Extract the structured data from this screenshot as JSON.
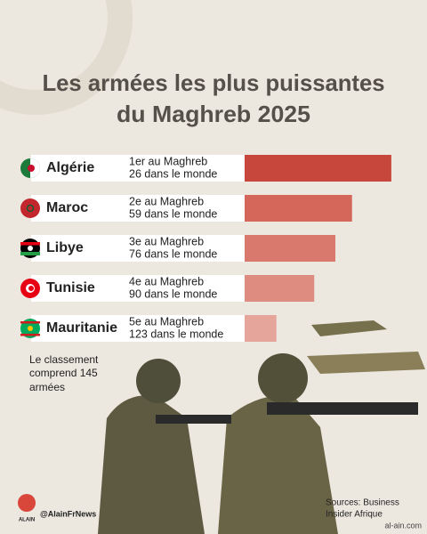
{
  "chart_data": {
    "type": "bar",
    "title_lines": [
      "Les armées les plus puissantes",
      "du Maghreb 2025"
    ],
    "categories": [
      "Algérie",
      "Maroc",
      "Libye",
      "Tunisie",
      "Mauritanie"
    ],
    "maghreb_rank": [
      "1er au Maghreb",
      "2e au Maghreb",
      "3e au Maghreb",
      "4e au Maghreb",
      "5e au Maghreb"
    ],
    "world_rank": [
      "26 dans le monde",
      "59 dans le monde",
      "76 dans le monde",
      "90 dans le monde",
      "123 dans le monde"
    ],
    "values": [
      97,
      71,
      60,
      46,
      21
    ],
    "colors": [
      "#c8473c",
      "#d4665a",
      "#d9786c",
      "#de8b80",
      "#e6a59b"
    ],
    "xlim": [
      0,
      100
    ],
    "note_lines": [
      "Le classement",
      "comprend 145",
      "armées"
    ]
  },
  "footer": {
    "logo": "ALAIN",
    "handle": "@AlainFrNews",
    "source_lines": [
      "Sources: Business",
      "Insider Afrique"
    ]
  },
  "watermark": "al-ain.com"
}
